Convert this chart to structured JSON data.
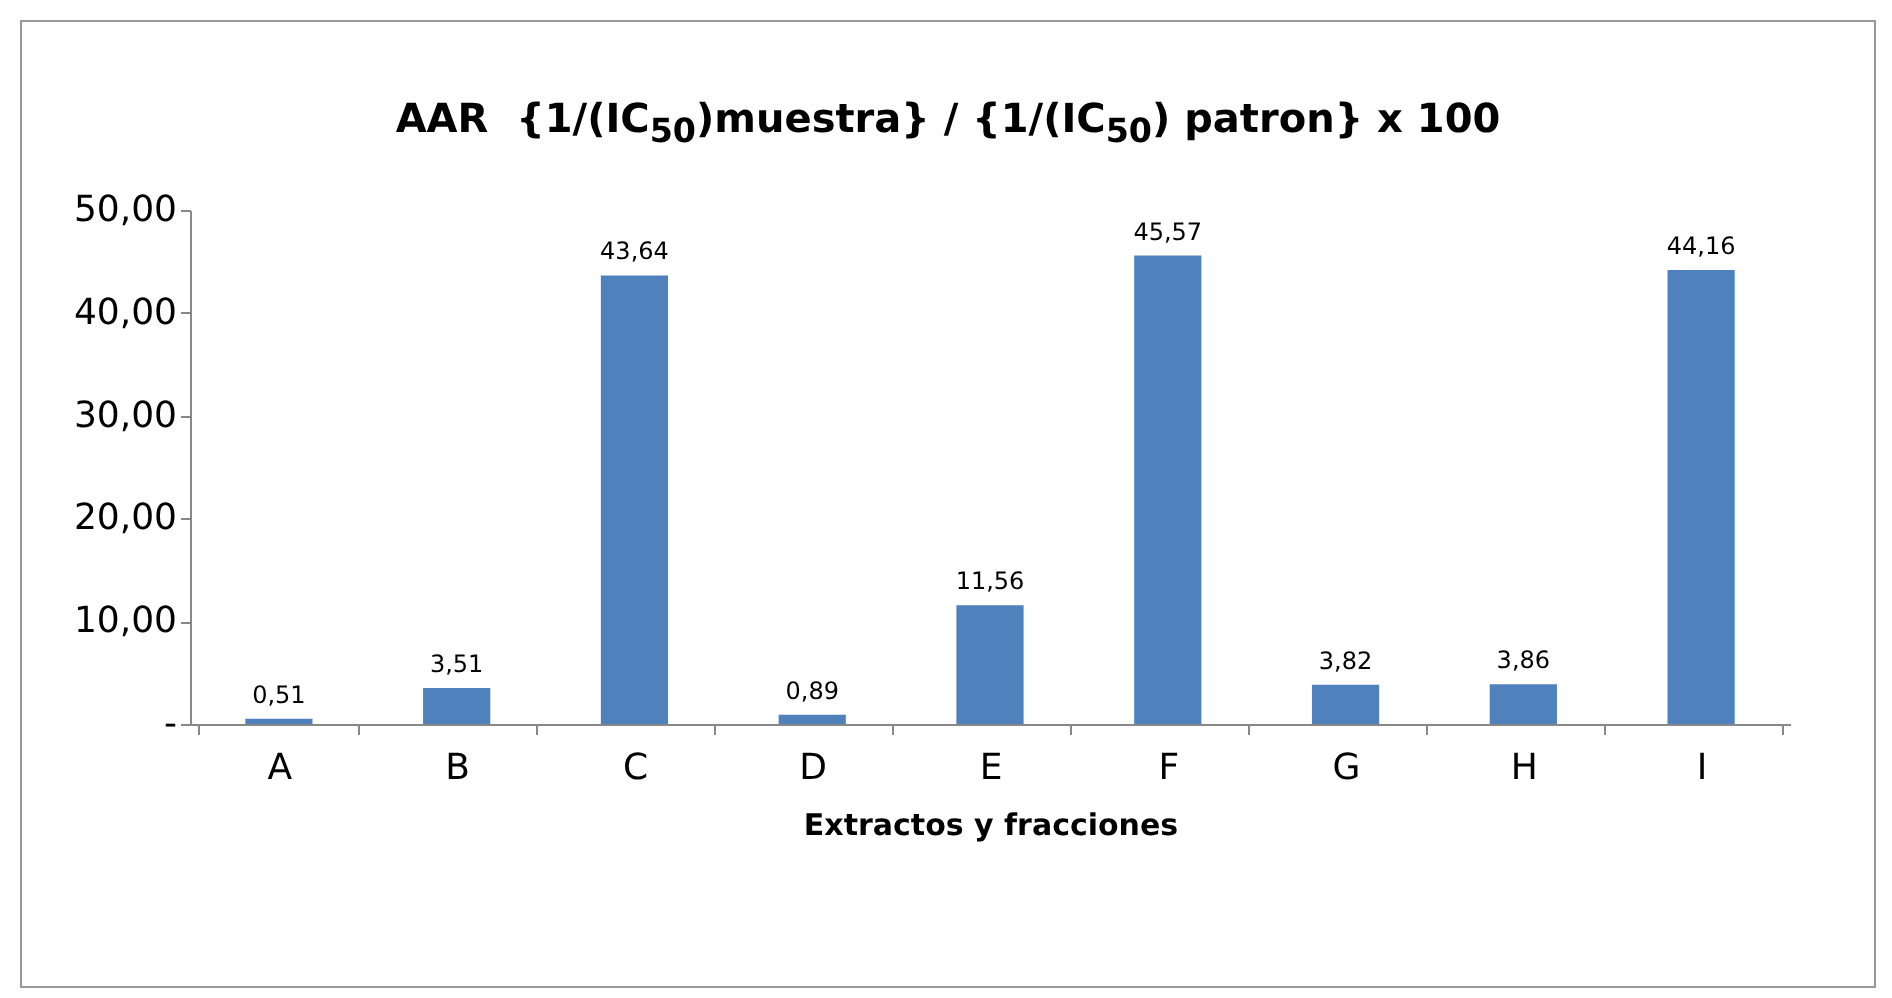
{
  "chart_data": {
    "type": "bar",
    "title": "AAR  {1/(IC$_{50}$)muestra} / {1/(IC$_{50}$) patron} x 100",
    "xlabel": "Extractos y fracciones",
    "categories": [
      "A",
      "B",
      "C",
      "D",
      "E",
      "F",
      "G",
      "H",
      "I"
    ],
    "values": [
      0.51,
      3.51,
      43.64,
      0.89,
      11.56,
      45.57,
      3.82,
      3.86,
      44.16
    ],
    "value_labels": [
      "0,51",
      "3,51",
      "43,64",
      "0,89",
      "11,56",
      "45,57",
      "3,82",
      "3,86",
      "44,16"
    ],
    "color": "#4f81bd",
    "ylim": [
      0,
      50
    ],
    "yticks": [
      {
        "value": 0,
        "label": "-"
      },
      {
        "value": 10,
        "label": "10,00"
      },
      {
        "value": 20,
        "label": "20,00"
      },
      {
        "value": 30,
        "label": "30,00"
      },
      {
        "value": 40,
        "label": "40,00"
      },
      {
        "value": 50,
        "label": "50,00"
      }
    ],
    "grid": false
  }
}
